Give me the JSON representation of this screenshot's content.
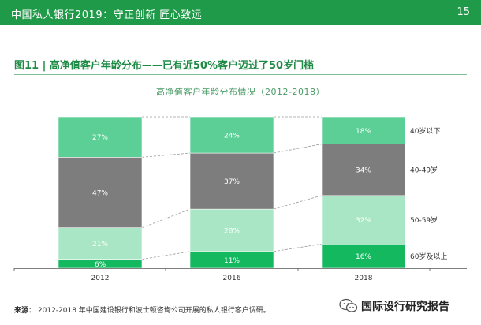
{
  "header": {
    "title": "中国私人银行2019：守正创新 匠心致远",
    "page_number": "15"
  },
  "figure": {
    "title": "图11 | 高净值客户年龄分布——已有近50%客户迈过了50岁门槛"
  },
  "source": {
    "label": "来源：",
    "text": "2012-2018 年中国建设银行和波士顿咨询公司开展的私人银行客户调研。"
  },
  "watermark": {
    "text": "国际设行研究报告",
    "icon": "wechat-icon"
  },
  "colors": {
    "header_bg": "#1f9a48",
    "under40": "#5ccf96",
    "age40_49": "#7d7d7d",
    "age50_59": "#a9e6c5",
    "over60": "#14b95f"
  },
  "chart_data": {
    "type": "bar",
    "stacked": true,
    "normalized": true,
    "title": "高净值客户年龄分布情况（2012-2018）",
    "categories": [
      "2012",
      "2016",
      "2018"
    ],
    "series": [
      {
        "name": "60岁及以上",
        "values": [
          6,
          11,
          16
        ],
        "labels": [
          "6%",
          "11%",
          "16%"
        ]
      },
      {
        "name": "50-59岁",
        "values": [
          21,
          28,
          32
        ],
        "labels": [
          "21%",
          "28%",
          "32%"
        ]
      },
      {
        "name": "40-49岁",
        "values": [
          47,
          37,
          34
        ],
        "labels": [
          "47%",
          "37%",
          "34%"
        ]
      },
      {
        "name": "40岁以下",
        "values": [
          27,
          24,
          18
        ],
        "labels": [
          "27%",
          "24%",
          "18%"
        ]
      }
    ],
    "legend_position": "right",
    "ylim": [
      0,
      100
    ],
    "xlabel": "",
    "ylabel": ""
  }
}
